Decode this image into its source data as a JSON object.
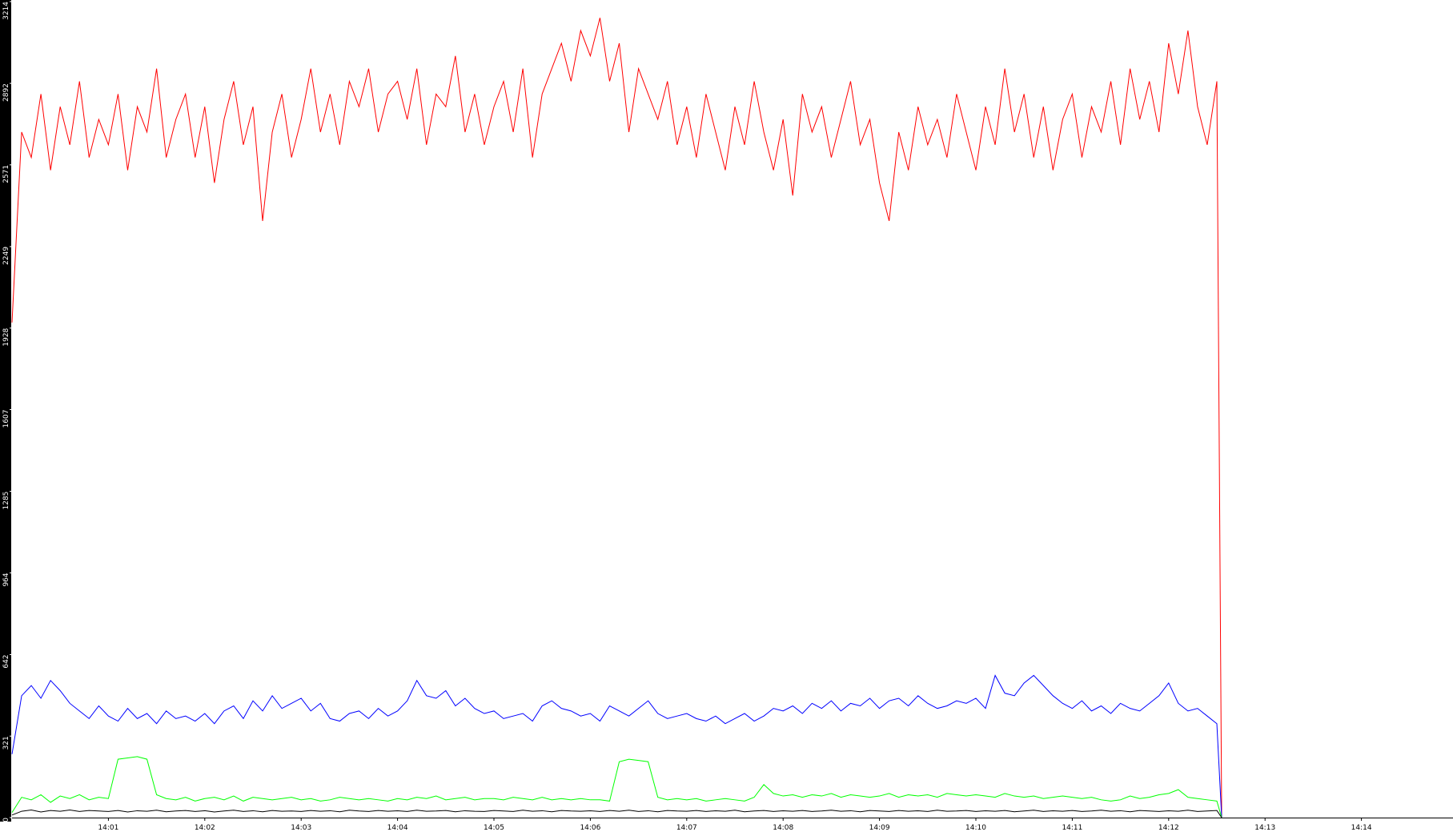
{
  "chart_data": {
    "type": "line",
    "x": [
      840.0,
      840.1,
      840.2,
      840.3,
      840.4,
      840.5,
      840.6,
      840.7,
      840.8,
      840.9,
      841.0,
      841.1,
      841.2,
      841.3,
      841.4,
      841.5,
      841.6,
      841.7,
      841.8,
      841.9,
      842.0,
      842.1,
      842.2,
      842.3,
      842.4,
      842.5,
      842.6,
      842.7,
      842.8,
      842.9,
      843.0,
      843.1,
      843.2,
      843.3,
      843.4,
      843.5,
      843.6,
      843.7,
      843.8,
      843.9,
      844.0,
      844.1,
      844.2,
      844.3,
      844.4,
      844.5,
      844.6,
      844.7,
      844.8,
      844.9,
      845.0,
      845.1,
      845.2,
      845.3,
      845.4,
      845.5,
      845.6,
      845.7,
      845.8,
      845.9,
      846.0,
      846.1,
      846.2,
      846.3,
      846.4,
      846.5,
      846.6,
      846.7,
      846.8,
      846.9,
      847.0,
      847.1,
      847.2,
      847.3,
      847.4,
      847.5,
      847.6,
      847.7,
      847.8,
      847.9,
      848.0,
      848.1,
      848.2,
      848.3,
      848.4,
      848.5,
      848.6,
      848.7,
      848.8,
      848.9,
      849.0,
      849.1,
      849.2,
      849.3,
      849.4,
      849.5,
      849.6,
      849.7,
      849.8,
      849.9,
      850.0,
      850.1,
      850.2,
      850.3,
      850.4,
      850.5,
      850.6,
      850.7,
      850.8,
      850.9,
      851.0,
      851.1,
      851.2,
      851.3,
      851.4,
      851.5,
      851.6,
      851.7,
      851.8,
      851.9,
      852.0,
      852.1,
      852.2,
      852.3,
      852.4,
      852.5,
      852.55
    ],
    "series": [
      {
        "color": "#ff0000",
        "values": [
          1950,
          2700,
          2600,
          2850,
          2550,
          2800,
          2650,
          2900,
          2600,
          2750,
          2650,
          2850,
          2550,
          2800,
          2700,
          2950,
          2600,
          2750,
          2850,
          2600,
          2800,
          2500,
          2750,
          2900,
          2650,
          2800,
          2350,
          2700,
          2850,
          2600,
          2750,
          2950,
          2700,
          2850,
          2650,
          2900,
          2800,
          2950,
          2700,
          2850,
          2900,
          2750,
          2950,
          2650,
          2850,
          2800,
          3000,
          2700,
          2850,
          2650,
          2800,
          2900,
          2700,
          2950,
          2600,
          2850,
          2950,
          3050,
          2900,
          3100,
          3000,
          3150,
          2900,
          3050,
          2700,
          2950,
          2850,
          2750,
          2900,
          2650,
          2800,
          2600,
          2850,
          2700,
          2550,
          2800,
          2650,
          2900,
          2700,
          2550,
          2750,
          2450,
          2850,
          2700,
          2800,
          2600,
          2750,
          2900,
          2650,
          2750,
          2500,
          2350,
          2700,
          2550,
          2800,
          2650,
          2750,
          2600,
          2850,
          2700,
          2550,
          2800,
          2650,
          2950,
          2700,
          2850,
          2600,
          2800,
          2550,
          2750,
          2850,
          2600,
          2800,
          2700,
          2900,
          2650,
          2950,
          2750,
          2900,
          2700,
          3050,
          2850,
          3100,
          2800,
          2650,
          2900,
          0
        ]
      },
      {
        "color": "#0000ff",
        "values": [
          250,
          480,
          520,
          470,
          540,
          500,
          450,
          420,
          390,
          440,
          400,
          380,
          430,
          390,
          410,
          370,
          420,
          390,
          400,
          380,
          410,
          370,
          420,
          440,
          390,
          460,
          420,
          480,
          430,
          450,
          470,
          420,
          450,
          390,
          380,
          410,
          420,
          390,
          430,
          400,
          420,
          460,
          540,
          480,
          470,
          500,
          440,
          470,
          430,
          410,
          420,
          390,
          400,
          410,
          380,
          440,
          460,
          430,
          420,
          400,
          410,
          380,
          440,
          420,
          400,
          430,
          460,
          410,
          390,
          400,
          410,
          390,
          380,
          400,
          370,
          390,
          410,
          380,
          400,
          430,
          420,
          440,
          410,
          450,
          430,
          460,
          420,
          450,
          440,
          470,
          430,
          460,
          470,
          440,
          480,
          450,
          430,
          440,
          460,
          450,
          470,
          430,
          560,
          490,
          480,
          530,
          560,
          520,
          480,
          450,
          430,
          460,
          420,
          440,
          410,
          450,
          430,
          420,
          450,
          480,
          530,
          450,
          420,
          430,
          400,
          370,
          0
        ]
      },
      {
        "color": "#00ff00",
        "values": [
          20,
          80,
          70,
          90,
          60,
          85,
          75,
          90,
          70,
          80,
          75,
          230,
          235,
          240,
          230,
          90,
          75,
          70,
          80,
          65,
          75,
          80,
          70,
          85,
          65,
          80,
          75,
          70,
          75,
          80,
          70,
          75,
          65,
          70,
          80,
          75,
          70,
          75,
          70,
          65,
          75,
          70,
          80,
          75,
          85,
          70,
          75,
          80,
          70,
          75,
          75,
          70,
          80,
          75,
          70,
          80,
          70,
          75,
          70,
          75,
          70,
          70,
          65,
          220,
          230,
          225,
          220,
          80,
          70,
          75,
          70,
          75,
          65,
          70,
          75,
          70,
          65,
          80,
          130,
          95,
          85,
          90,
          80,
          90,
          85,
          95,
          80,
          90,
          85,
          80,
          85,
          95,
          80,
          90,
          85,
          90,
          80,
          95,
          90,
          85,
          90,
          85,
          80,
          95,
          85,
          80,
          85,
          75,
          80,
          85,
          80,
          75,
          80,
          70,
          65,
          70,
          85,
          75,
          80,
          90,
          95,
          110,
          80,
          75,
          70,
          65,
          0
        ]
      },
      {
        "color": "#000000",
        "values": [
          10,
          25,
          30,
          22,
          28,
          25,
          30,
          24,
          28,
          26,
          24,
          28,
          22,
          27,
          25,
          29,
          23,
          26,
          28,
          24,
          27,
          22,
          26,
          29,
          24,
          27,
          23,
          28,
          25,
          26,
          24,
          28,
          25,
          27,
          23,
          29,
          26,
          24,
          28,
          25,
          27,
          24,
          29,
          25,
          26,
          28,
          23,
          27,
          25,
          24,
          28,
          26,
          24,
          29,
          25,
          27,
          23,
          28,
          26,
          25,
          27,
          24,
          28,
          25,
          29,
          24,
          27,
          23,
          28,
          26,
          25,
          28,
          24,
          27,
          25,
          29,
          23,
          26,
          28,
          24,
          27,
          25,
          28,
          24,
          26,
          29,
          25,
          27,
          23,
          28,
          26,
          24,
          28,
          25,
          27,
          24,
          29,
          25,
          26,
          28,
          24,
          27,
          25,
          28,
          23,
          26,
          29,
          24,
          27,
          25,
          28,
          24,
          26,
          29,
          25,
          27,
          23,
          28,
          26,
          24,
          27,
          25,
          29,
          24,
          26,
          28,
          0
        ]
      }
    ],
    "xlim": [
      840,
      854.95
    ],
    "xticks": [
      {
        "value": 841,
        "label": "14:01"
      },
      {
        "value": 842,
        "label": "14:02"
      },
      {
        "value": 843,
        "label": "14:03"
      },
      {
        "value": 844,
        "label": "14:04"
      },
      {
        "value": 845,
        "label": "14:05"
      },
      {
        "value": 846,
        "label": "14:06"
      },
      {
        "value": 847,
        "label": "14:07"
      },
      {
        "value": 848,
        "label": "14:08"
      },
      {
        "value": 849,
        "label": "14:09"
      },
      {
        "value": 850,
        "label": "14:10"
      },
      {
        "value": 851,
        "label": "14:11"
      },
      {
        "value": 852,
        "label": "14:12"
      },
      {
        "value": 853,
        "label": "14:13"
      },
      {
        "value": 854,
        "label": "14:14"
      }
    ],
    "ylim": [
      0,
      3214
    ],
    "yticks": [
      0,
      321,
      642,
      964,
      1285,
      1607,
      1928,
      2249,
      2571,
      2892,
      3214
    ],
    "grid": false
  }
}
